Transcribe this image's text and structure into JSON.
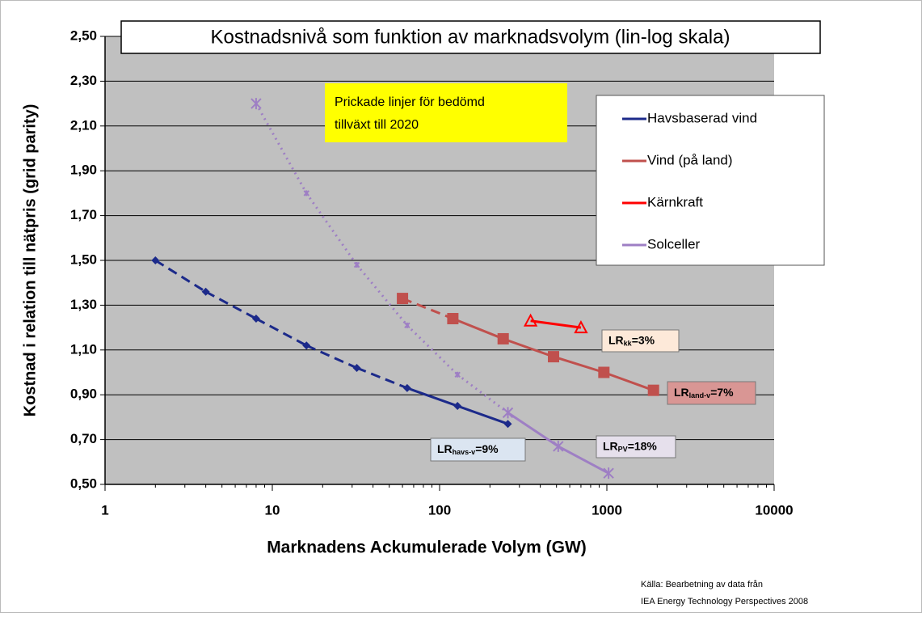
{
  "chart_data": {
    "type": "line",
    "title": "Kostnadsnivå  som funktion av marknadsvolym (lin-log skala)",
    "note": "Prickade linjer för bedömd tillväxt till 2020",
    "xlabel": "Marknadens Ackumulerade Volym (GW)",
    "ylabel": "Kostnad i relation till nätpris (grid parity)",
    "source": [
      "Källa: Bearbetning av data från",
      "IEA Energy Technology Perspectives 2008"
    ],
    "xscale": "log",
    "xlim": [
      1,
      10000
    ],
    "xticks": [
      1,
      10,
      100,
      1000,
      10000
    ],
    "ylim": [
      0.5,
      2.5
    ],
    "yticks": [
      {
        "value": 0.5,
        "label": "0,50"
      },
      {
        "value": 0.7,
        "label": "0,70"
      },
      {
        "value": 0.9,
        "label": "0,90"
      },
      {
        "value": 1.1,
        "label": "1,10"
      },
      {
        "value": 1.3,
        "label": "1,30"
      },
      {
        "value": 1.5,
        "label": "1,50"
      },
      {
        "value": 1.7,
        "label": "1,70"
      },
      {
        "value": 1.9,
        "label": "1,90"
      },
      {
        "value": 2.1,
        "label": "2,10"
      },
      {
        "value": 2.3,
        "label": "2,30"
      },
      {
        "value": 2.5,
        "label": "2,50"
      }
    ],
    "grid": true,
    "legend": "upper right",
    "series": [
      {
        "name": "Havsbaserad vind",
        "color": "#1c2a8a",
        "marker": "diamond",
        "dashed_segments": 5,
        "x": [
          2,
          4,
          8,
          16,
          32,
          64,
          128,
          256
        ],
        "values": [
          1.5,
          1.36,
          1.24,
          1.12,
          1.02,
          0.93,
          0.85,
          0.77
        ]
      },
      {
        "name": "Vind (på land)",
        "color": "#c0504d",
        "marker": "square",
        "dashed_segments": 1,
        "x": [
          60,
          120,
          240,
          480,
          960,
          1900
        ],
        "values": [
          1.33,
          1.24,
          1.15,
          1.07,
          1.0,
          0.92
        ]
      },
      {
        "name": "Kärnkraft",
        "color": "#ff0000",
        "marker": "triangle",
        "dashed_segments": 0,
        "x": [
          350,
          700
        ],
        "values": [
          1.23,
          1.2
        ]
      },
      {
        "name": "Solceller",
        "color": "#9e7fc4",
        "marker": "star",
        "dashed_segments": 5,
        "x": [
          8,
          16,
          32,
          64,
          128,
          256,
          512,
          1024
        ],
        "values": [
          2.2,
          1.8,
          1.48,
          1.21,
          0.99,
          0.82,
          0.67,
          0.55
        ]
      }
    ],
    "annotations": [
      {
        "main": "LR",
        "sub": "kk",
        "rest": "=3%",
        "fill": "#fde9d9"
      },
      {
        "main": "LR",
        "sub": "land-v",
        "rest": "=7%",
        "fill": "#d99694"
      },
      {
        "main": "LR",
        "sub": "havs-v",
        "rest": "=9%",
        "fill": "#dbe5f1"
      },
      {
        "main": "LR",
        "sub": "PV",
        "rest": "=18%",
        "fill": "#e6e0ec"
      }
    ]
  }
}
